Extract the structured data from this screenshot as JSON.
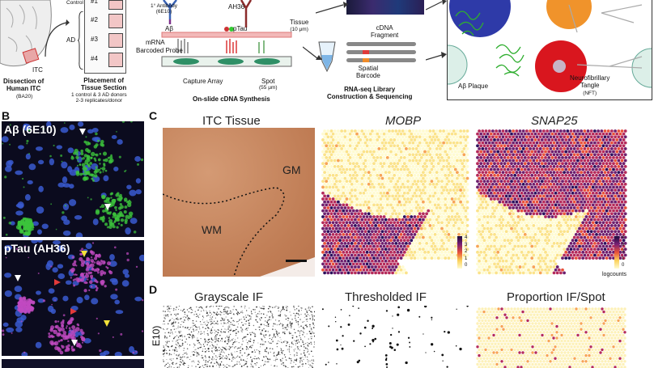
{
  "panel_a": {
    "tissue_label": "ITC",
    "dissection_title": "Dissection of\nHuman ITC",
    "dissection_sub": "(BA20)",
    "control_label": "Control",
    "ad_label": "AD",
    "slots": [
      "#1",
      "#2",
      "#3",
      "#4"
    ],
    "placement_title": "Placement of\nTissue Section",
    "placement_sub": "1 control & 3 AD donors\n2-3 replicates/donor",
    "antibody_label": "1° Antibody",
    "antibody_sub": "(6E10)",
    "ah36_label": "AH36",
    "abeta_label": "Aβ",
    "ptau_label": "pTau",
    "tissue_lbl": "Tissue",
    "tissue_sub": "(10 μm)",
    "mrna_label": "mRNA",
    "probe_label": "Barcoded Probe",
    "capture_label": "Capture Array",
    "spot_label": "Spot",
    "spot_sub": "(55 μm)",
    "synthesis_title": "On-slide cDNA Synthesis",
    "cdna_label": "cDNA\nFragment",
    "barcode_label": "Spatial\nBarcode",
    "library_title": "RNA-seq Library\nConstruction & Sequencing",
    "plaque_label": "Aβ Plaque",
    "nft_label": "Neurofibrillary\nTangle",
    "nft_sub": "(NFT)"
  },
  "panel_b": {
    "label": "B",
    "abeta_title": "Aβ (6E10)",
    "ptau_title": "pTau (AH36)"
  },
  "panel_c": {
    "label": "C",
    "titles": [
      "ITC Tissue",
      "MOBP",
      "SNAP25"
    ],
    "gm_label": "GM",
    "wm_label": "WM",
    "colorbar_ticks": [
      "4",
      "3",
      "2",
      "1",
      "0"
    ],
    "colorbar_unit": "logcounts"
  },
  "panel_d": {
    "label": "D",
    "titles": [
      "Grayscale IF",
      "Thresholded IF",
      "Proportion IF/Spot"
    ],
    "side_label": "E10)"
  },
  "colors": {
    "abeta_green": "#3cc43c",
    "ptau_magenta": "#c04ac0",
    "dapi_blue": "#3a5bd0",
    "tissue_brown": "#c98a64",
    "heat_low": "#fdf5c4",
    "heat_high": "#2b0f5c"
  }
}
